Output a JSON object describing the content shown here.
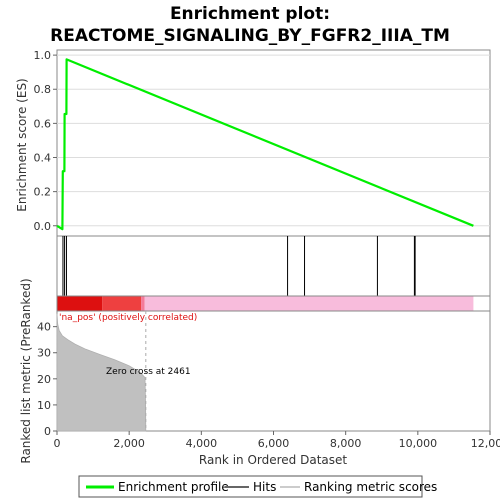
{
  "chart_data": {
    "type": "line",
    "title_line1": "Enrichment plot:",
    "title_line2": "REACTOME_SIGNALING_BY_FGFR2_IIIA_TM",
    "top_panel": {
      "ylabel": "Enrichment score (ES)",
      "y_ticks": [
        "0.0",
        "0.2",
        "0.4",
        "0.6",
        "0.8",
        "1.0"
      ],
      "ylim": [
        -0.06,
        1.03
      ],
      "series": [
        {
          "name": "Enrichment profile",
          "color": "#00ee00",
          "x": [
            0,
            150,
            160,
            205,
            210,
            260,
            265,
            11540
          ],
          "y": [
            0.0,
            -0.02,
            0.32,
            0.32,
            0.655,
            0.655,
            0.975,
            0.0
          ]
        }
      ]
    },
    "hits": {
      "name": "Hits",
      "positions": [
        165,
        210,
        262,
        6390,
        6860,
        8880,
        9905,
        9925
      ]
    },
    "ranking_bar": {
      "segments": [
        {
          "from": 0,
          "to": 1250,
          "color": "#dd1010"
        },
        {
          "from": 1250,
          "to": 2330,
          "color": "#ee4040"
        },
        {
          "from": 2330,
          "to": 2430,
          "color": "#f47a9a"
        },
        {
          "from": 2430,
          "to": 11540,
          "color": "#f8bcdc"
        }
      ]
    },
    "bottom_panel": {
      "ylabel": "Ranked list metric (PreRanked)",
      "xlabel": "Rank in Ordered Dataset",
      "y_ticks": [
        "0",
        "10",
        "20",
        "30",
        "40"
      ],
      "ylim": [
        0,
        46
      ],
      "x_ticks": [
        "0",
        "2,000",
        "4,000",
        "6,000",
        "8,000",
        "10,000",
        "12,000"
      ],
      "xlim": [
        0,
        12000
      ],
      "metric_curve": {
        "x": [
          0,
          20,
          60,
          150,
          300,
          500,
          800,
          1200,
          1600,
          2000,
          2300,
          2440,
          2455,
          2461
        ],
        "y": [
          45,
          41,
          38.5,
          36.5,
          35,
          33.3,
          31.3,
          29.3,
          27.3,
          25,
          22.5,
          20.5,
          10,
          0
        ]
      },
      "zero_cross_label": "Zero cross at 2461",
      "zero_cross_x": 2461,
      "positive_label": "'na_pos' (positively correlated)",
      "positive_label_color": "#dd1010"
    },
    "legend": [
      {
        "label": "Enrichment profile",
        "color": "#00ee00"
      },
      {
        "label": "Hits",
        "color": "#666666"
      },
      {
        "label": "Ranking metric scores",
        "color": "#cccccc"
      }
    ]
  }
}
